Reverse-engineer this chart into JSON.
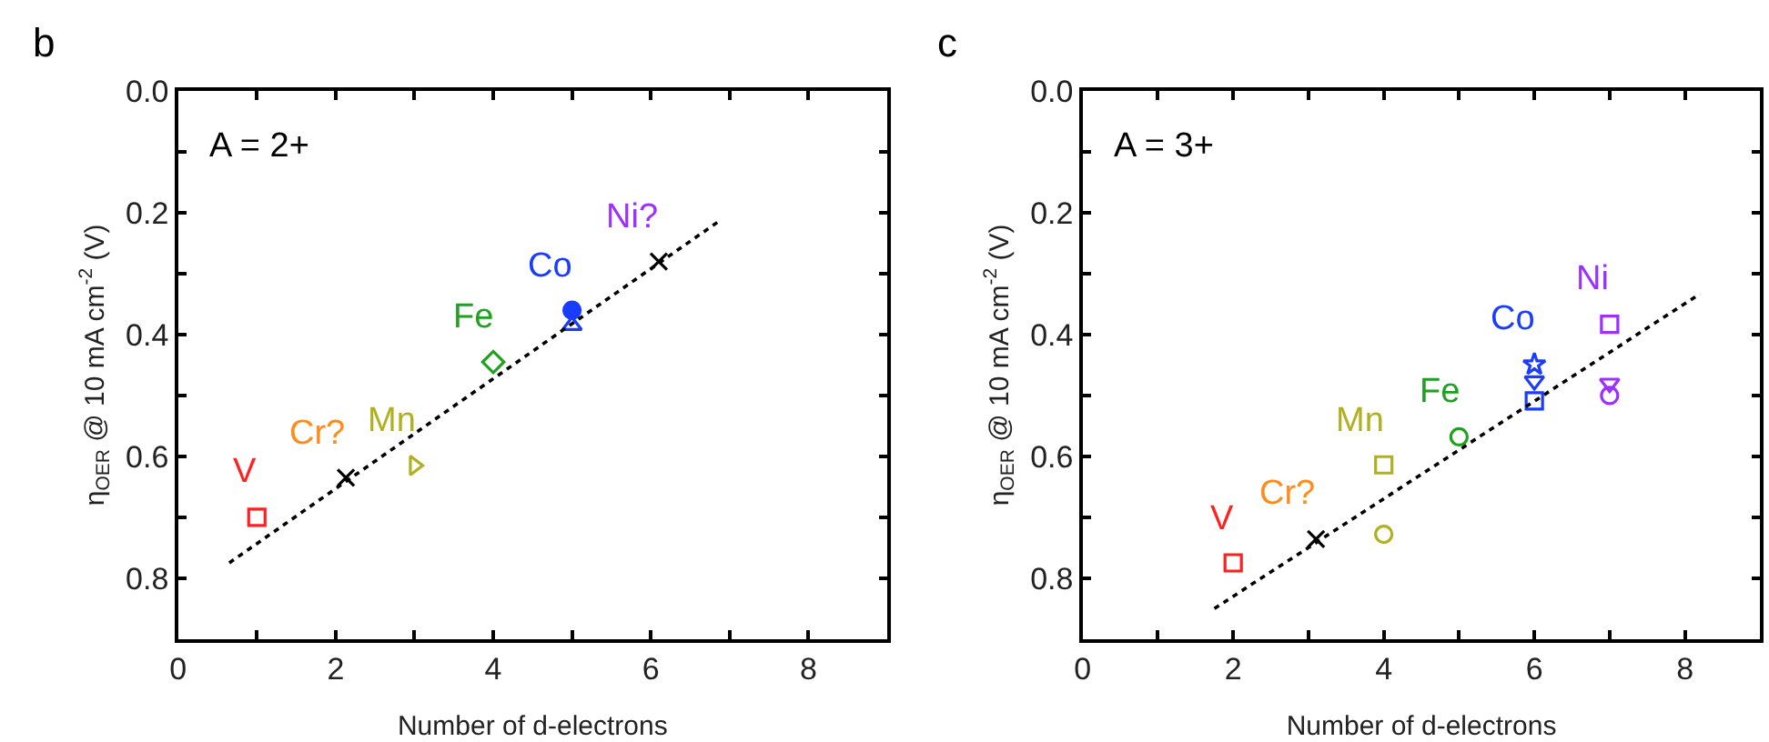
{
  "chart_data": [
    {
      "type": "scatter",
      "title": "b",
      "xlabel": "Number of d-electrons",
      "ylabel": "η$_{OER}$ @ 10 mA cm$^{-2}$ (V)",
      "xlim": [
        0,
        9
      ],
      "ylim": [
        0.9,
        0.0
      ],
      "xticks": [
        0,
        {
          "value": 1,
          "label": null
        },
        2,
        {
          "value": 3,
          "label": null
        },
        4,
        {
          "value": 5,
          "label": null
        },
        6,
        {
          "value": 7,
          "label": null
        },
        8
      ],
      "yticks": [
        {
          "value": 0.0,
          "label": "0.0"
        },
        {
          "value": 0.1,
          "label": null
        },
        0.2,
        {
          "value": 0.3,
          "label": null
        },
        0.4,
        {
          "value": 0.5,
          "label": null
        },
        0.6,
        {
          "value": 0.7,
          "label": null
        },
        0.8
      ],
      "series": [
        {
          "name": "V",
          "color": "#ff2020",
          "marker": "square-open",
          "x": [
            1
          ],
          "values": [
            0.7
          ]
        },
        {
          "name": "Cr?",
          "color": "#ff8c1a",
          "colors": [
            "#000000"
          ],
          "marker": "cross",
          "x": [
            2.13
          ],
          "values": [
            0.635
          ]
        },
        {
          "name": "Mn",
          "color": "#b0b020",
          "marker": "triangle-right-open",
          "x": [
            3
          ],
          "values": [
            0.615
          ]
        },
        {
          "name": "Fe",
          "color": "#20a020",
          "marker": "diamond-open",
          "x": [
            4
          ],
          "values": [
            0.445
          ]
        },
        {
          "name": "Co",
          "color": "#1a3cff",
          "marker": "circle",
          "x": [
            5
          ],
          "values": [
            0.36
          ]
        },
        {
          "color": "#1a3cff",
          "marker": "triangle-up-open",
          "x": [
            5
          ],
          "values": [
            0.385
          ]
        },
        {
          "name": "Ni?",
          "color": "#9b30ff",
          "colors": [
            "#000000"
          ],
          "marker": "cross",
          "x": [
            6.1
          ],
          "values": [
            0.28
          ]
        },
        {
          "type": "line",
          "color": "#000000",
          "line_style": "dotted",
          "x": [
            0.65,
            6.85
          ],
          "values": [
            0.775,
            0.215
          ]
        }
      ],
      "annotations": [
        "A = 2+"
      ]
    },
    {
      "type": "scatter",
      "title": "c",
      "xlabel": "Number of d-electrons",
      "ylabel": "η$_{OER}$ @ 10 mA cm$^{-2}$ (V)",
      "xlim": [
        0,
        9
      ],
      "ylim": [
        0.9,
        0.0
      ],
      "xticks": [
        0,
        {
          "value": 1,
          "label": null
        },
        2,
        {
          "value": 3,
          "label": null
        },
        4,
        {
          "value": 5,
          "label": null
        },
        6,
        {
          "value": 7,
          "label": null
        },
        8
      ],
      "yticks": [
        {
          "value": 0.0,
          "label": "0.0"
        },
        {
          "value": 0.1,
          "label": null
        },
        0.2,
        {
          "value": 0.3,
          "label": null
        },
        0.4,
        {
          "value": 0.5,
          "label": null
        },
        0.6,
        {
          "value": 0.7,
          "label": null
        },
        0.8
      ],
      "series": [
        {
          "name": "V",
          "color": "#ff2020",
          "marker": "square-open",
          "x": [
            2
          ],
          "values": [
            0.775
          ]
        },
        {
          "name": "Cr?",
          "color": "#ff8c1a",
          "colors": [
            "#000000"
          ],
          "marker": "cross",
          "x": [
            3.1
          ],
          "values": [
            0.736
          ]
        },
        {
          "name": "Mn",
          "color": "#b0b020",
          "marker": "square-open",
          "x": [
            4
          ],
          "values": [
            0.614
          ]
        },
        {
          "color": "#b0b020",
          "marker": "circle-open",
          "x": [
            4
          ],
          "values": [
            0.728
          ]
        },
        {
          "name": "Fe",
          "color": "#20a020",
          "marker": "circle-open",
          "x": [
            5
          ],
          "values": [
            0.568
          ]
        },
        {
          "name": "Co",
          "color": "#1a3cff",
          "marker": "star-open",
          "x": [
            6
          ],
          "values": [
            0.449
          ]
        },
        {
          "color": "#1a3cff",
          "marker": "triangle-down-open",
          "x": [
            6
          ],
          "values": [
            0.476
          ]
        },
        {
          "color": "#1a3cff",
          "marker": "square-open",
          "x": [
            6
          ],
          "values": [
            0.509
          ]
        },
        {
          "name": "Ni",
          "color": "#9b30ff",
          "marker": "square-open",
          "x": [
            7
          ],
          "values": [
            0.383
          ]
        },
        {
          "color": "#9b30ff",
          "marker": "triangle-down-open",
          "x": [
            7
          ],
          "values": [
            0.48
          ]
        },
        {
          "color": "#9b30ff",
          "marker": "circle-open",
          "x": [
            7
          ],
          "values": [
            0.5
          ]
        },
        {
          "type": "line",
          "color": "#000000",
          "line_style": "dotted",
          "x": [
            1.75,
            8.2
          ],
          "values": [
            0.85,
            0.333
          ]
        }
      ],
      "annotations": [
        "A = 3+"
      ]
    }
  ]
}
